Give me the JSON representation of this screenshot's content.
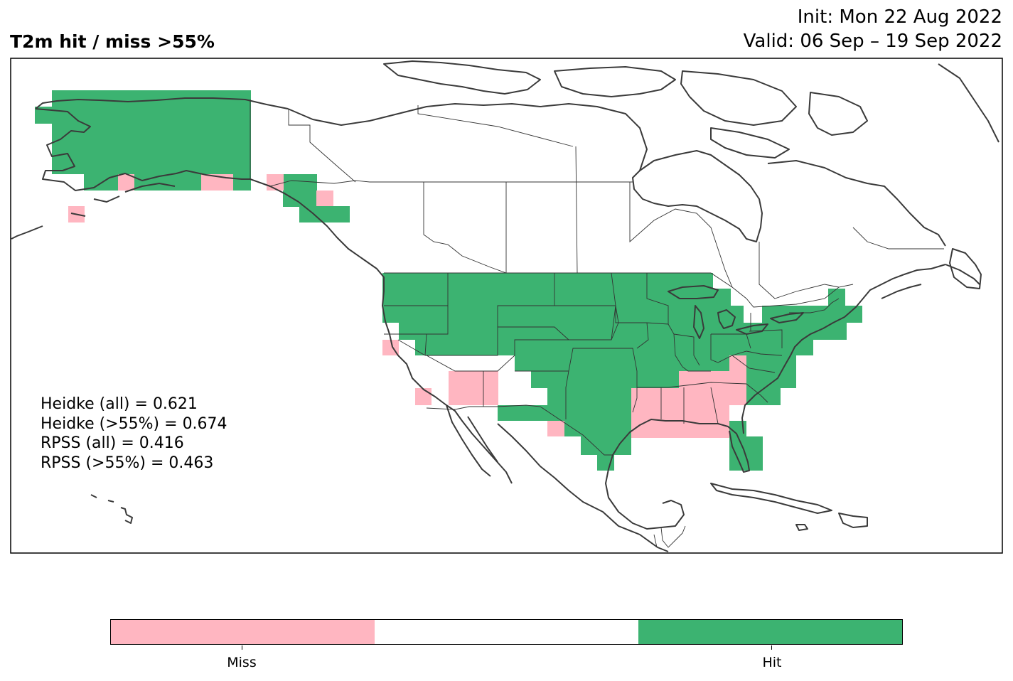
{
  "title": "T2m hit / miss  >55%",
  "init_text": "Init: Mon 22 Aug 2022",
  "valid_text": "Valid: 06 Sep – 19 Sep 2022",
  "colors": {
    "hit": "#3cb371",
    "miss": "#ffb6c1",
    "none": "#ffffff",
    "coast": "#3a3a3a",
    "border": "#333333"
  },
  "stats": [
    {
      "label": "Heidke (all)",
      "value": "0.621"
    },
    {
      "label": "Heidke (>55%)",
      "value": "0.674"
    },
    {
      "label": "RPSS (all)",
      "value": "0.416"
    },
    {
      "label": "RPSS (>55%)",
      "value": "0.463"
    }
  ],
  "colorbar": {
    "segments": [
      "miss",
      "none",
      "hit"
    ],
    "ticks": [
      {
        "label": "Miss"
      },
      {
        "label": "Hit"
      }
    ]
  }
}
